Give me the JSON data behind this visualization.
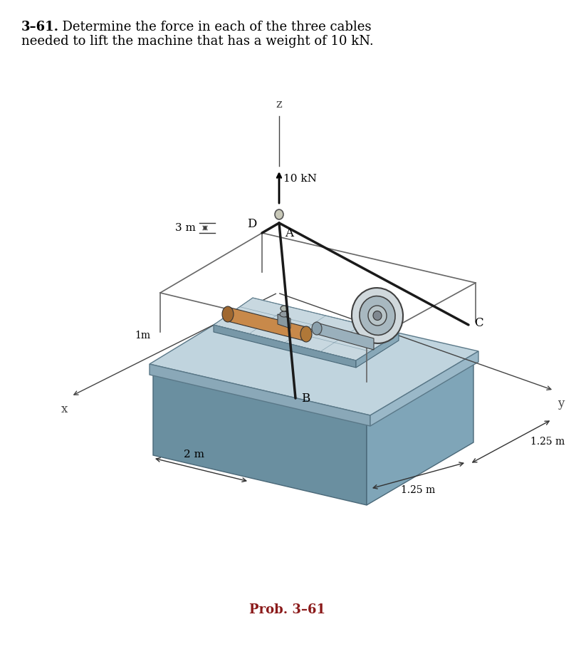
{
  "title_bold": "3–61.",
  "title_rest": "  Determine the force in each of the three cables",
  "title_line2": "needed to lift the machine that has a weight of 10 kN.",
  "prob_label": "Prob. 3–61",
  "prob_color": "#8B1A1A",
  "cable_color": "#1a1a1a",
  "frame_color": "#555555",
  "box_top": "#b0c8d4",
  "box_left": "#6a8fa0",
  "box_right": "#7fa5b8",
  "plate_top": "#c0d4de",
  "plate_edge_front": "#8aa8b8",
  "plate_edge_right": "#9ab8c8",
  "inner_top": "#c8d8e0",
  "inner_left": "#7898a8",
  "inner_right": "#88a8b8",
  "cyl_body": "#c8894a",
  "cyl_end": "#a06830",
  "wheel_outer_fc": "#d0d8dc",
  "wheel_inner_fc": "#a8b8c0",
  "wheel_hub_fc": "#c0c8cc",
  "dim_color": "#333333",
  "axis_color": "#444444",
  "label_fs": 11,
  "dim_fs": 10,
  "title_fs": 13,
  "prob_fs": 13
}
